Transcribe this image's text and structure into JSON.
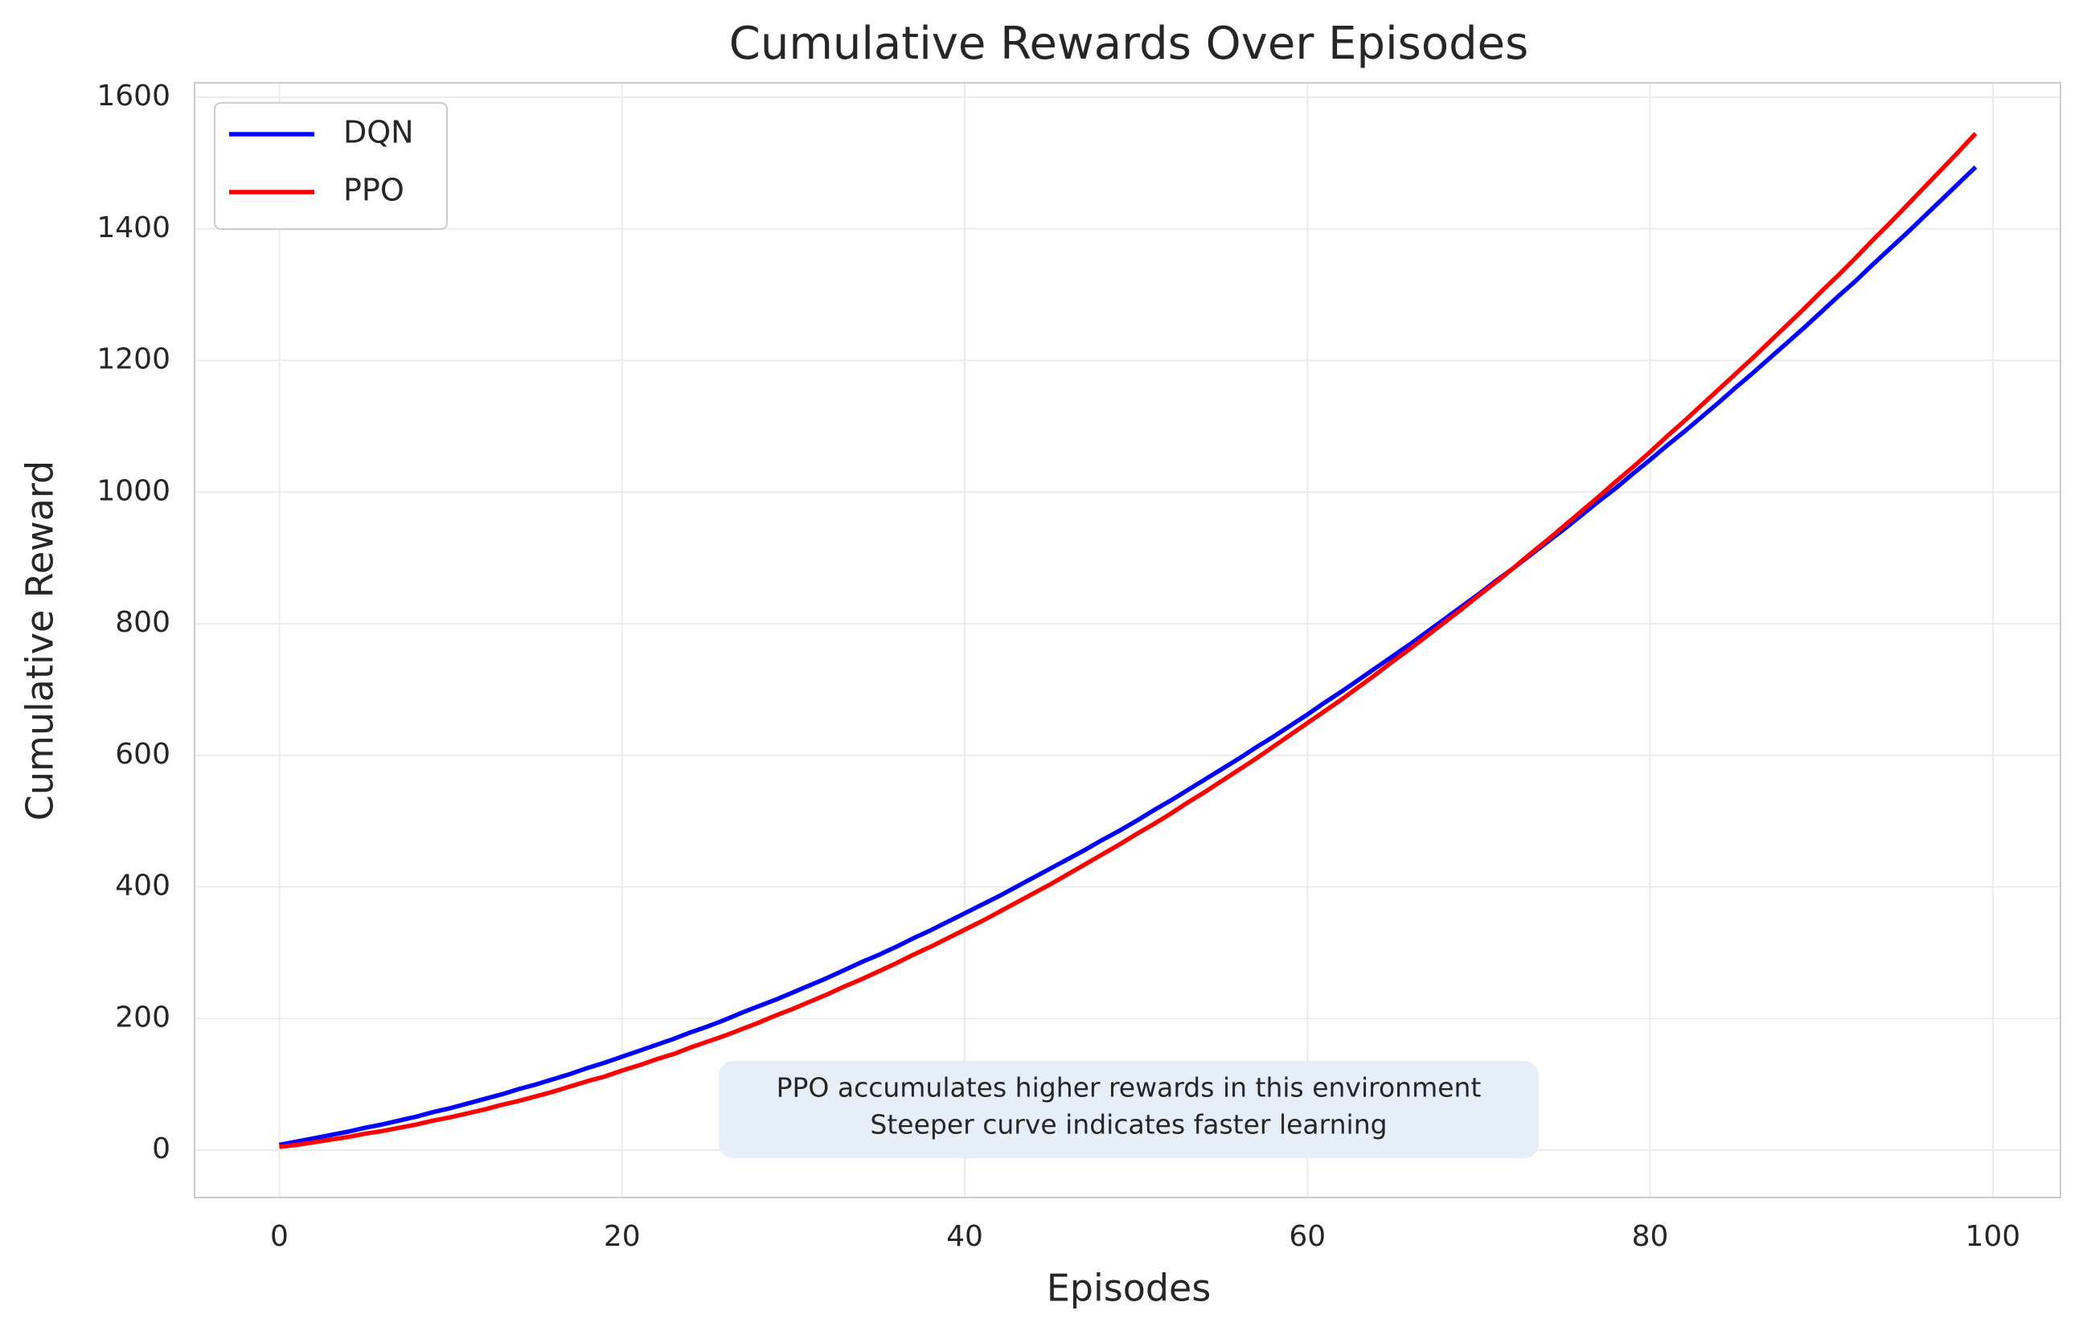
{
  "chart_data": {
    "type": "line",
    "title": "Cumulative Rewards Over Episodes",
    "xlabel": "Episodes",
    "ylabel": "Cumulative Reward",
    "x": [
      0,
      1,
      2,
      3,
      4,
      5,
      6,
      7,
      8,
      9,
      10,
      11,
      12,
      13,
      14,
      15,
      16,
      17,
      18,
      19,
      20,
      21,
      22,
      23,
      24,
      25,
      26,
      27,
      28,
      29,
      30,
      31,
      32,
      33,
      34,
      35,
      36,
      37,
      38,
      39,
      40,
      41,
      42,
      43,
      44,
      45,
      46,
      47,
      48,
      49,
      50,
      51,
      52,
      53,
      54,
      55,
      56,
      57,
      58,
      59,
      60,
      61,
      62,
      63,
      64,
      65,
      66,
      67,
      68,
      69,
      70,
      71,
      72,
      73,
      74,
      75,
      76,
      77,
      78,
      79,
      80,
      81,
      82,
      83,
      84,
      85,
      86,
      87,
      88,
      89,
      90,
      91,
      92,
      93,
      94,
      95,
      96,
      97,
      98,
      99
    ],
    "series": [
      {
        "name": "DQN",
        "color": "#0000ff",
        "values": [
          8,
          13,
          18,
          23,
          28,
          34,
          39,
          45,
          51,
          58,
          64,
          71,
          78,
          85,
          93,
          100,
          108,
          116,
          125,
          133,
          142,
          151,
          160,
          169,
          179,
          188,
          198,
          209,
          219,
          229,
          240,
          251,
          262,
          274,
          286,
          297,
          309,
          322,
          334,
          347,
          360,
          373,
          386,
          400,
          414,
          428,
          442,
          456,
          471,
          485,
          500,
          516,
          531,
          547,
          563,
          579,
          595,
          612,
          628,
          645,
          662,
          680,
          697,
          715,
          733,
          751,
          769,
          788,
          807,
          826,
          845,
          865,
          884,
          904,
          924,
          944,
          965,
          986,
          1006,
          1028,
          1049,
          1071,
          1092,
          1114,
          1136,
          1159,
          1181,
          1204,
          1227,
          1250,
          1274,
          1298,
          1321,
          1346,
          1370,
          1394,
          1419,
          1444,
          1469,
          1494
        ]
      },
      {
        "name": "PPO",
        "color": "#ff0000",
        "values": [
          5,
          8,
          12,
          16,
          20,
          25,
          29,
          34,
          39,
          45,
          50,
          56,
          62,
          69,
          75,
          82,
          89,
          97,
          105,
          112,
          121,
          129,
          138,
          146,
          156,
          165,
          174,
          184,
          194,
          205,
          215,
          226,
          237,
          249,
          260,
          272,
          284,
          297,
          309,
          322,
          335,
          348,
          362,
          376,
          390,
          404,
          419,
          434,
          449,
          464,
          480,
          495,
          511,
          528,
          544,
          561,
          578,
          595,
          613,
          631,
          649,
          667,
          685,
          704,
          723,
          743,
          762,
          782,
          802,
          822,
          843,
          863,
          884,
          906,
          927,
          949,
          971,
          993,
          1016,
          1038,
          1061,
          1085,
          1108,
          1132,
          1156,
          1180,
          1204,
          1229,
          1254,
          1279,
          1305,
          1330,
          1356,
          1383,
          1409,
          1436,
          1463,
          1490,
          1517,
          1545
        ]
      }
    ],
    "xlim": [
      -4.95,
      103.95
    ],
    "ylim": [
      -72,
      1622
    ],
    "xticks": [
      0,
      20,
      40,
      60,
      80,
      100
    ],
    "yticks": [
      0,
      200,
      400,
      600,
      800,
      1000,
      1200,
      1400,
      1600
    ],
    "grid": true,
    "legend": "upper left",
    "annotation": [
      "PPO accumulates higher rewards in this environment",
      "Steeper curve indicates faster learning"
    ]
  }
}
